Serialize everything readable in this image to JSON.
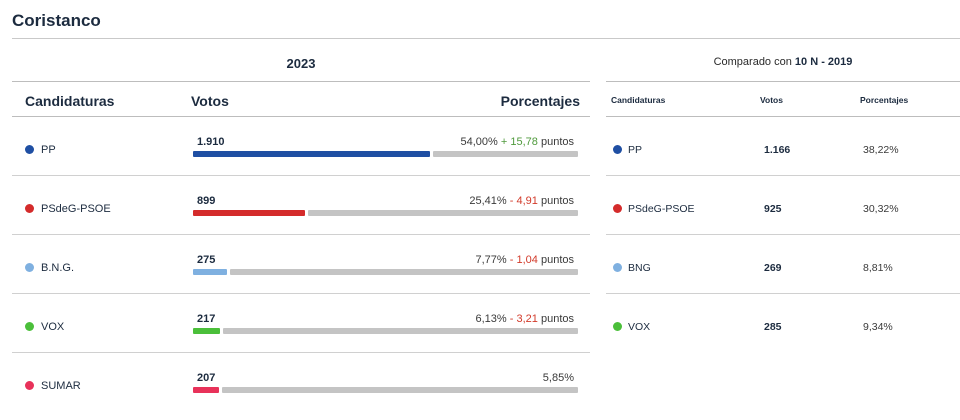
{
  "page": {
    "title": "Coristanco"
  },
  "main": {
    "year": "2023",
    "headers": {
      "party": "Candidaturas",
      "votes": "Votos",
      "percent": "Porcentajes"
    },
    "rows": [
      {
        "party": "PP",
        "color": "#1f4fa3",
        "votes": "1.910",
        "percent": "54,00%",
        "delta": "+ 15,78",
        "delta_sign": "pos",
        "unit": "puntos",
        "share": 54.0
      },
      {
        "party": "PSdeG-PSOE",
        "color": "#d42b2b",
        "votes": "899",
        "percent": "25,41%",
        "delta": "- 4,91",
        "delta_sign": "neg",
        "unit": "puntos",
        "share": 25.41
      },
      {
        "party": "B.N.G.",
        "color": "#7fb0e0",
        "votes": "275",
        "percent": "7,77%",
        "delta": "- 1,04",
        "delta_sign": "neg",
        "unit": "puntos",
        "share": 7.77
      },
      {
        "party": "VOX",
        "color": "#4bbf3a",
        "votes": "217",
        "percent": "6,13%",
        "delta": "- 3,21",
        "delta_sign": "neg",
        "unit": "puntos",
        "share": 6.13
      },
      {
        "party": "SUMAR",
        "color": "#e8325a",
        "votes": "207",
        "percent": "5,85%",
        "delta": "",
        "delta_sign": "",
        "unit": "",
        "share": 5.85
      }
    ]
  },
  "comparison": {
    "label": "Comparado con",
    "election": "10 N - 2019",
    "headers": {
      "party": "Candidaturas",
      "votes": "Votos",
      "percent": "Porcentajes"
    },
    "rows": [
      {
        "party": "PP",
        "color": "#1f4fa3",
        "votes": "1.166",
        "percent": "38,22%"
      },
      {
        "party": "PSdeG-PSOE",
        "color": "#d42b2b",
        "votes": "925",
        "percent": "30,32%"
      },
      {
        "party": "BNG",
        "color": "#7fb0e0",
        "votes": "269",
        "percent": "8,81%"
      },
      {
        "party": "VOX",
        "color": "#4bbf3a",
        "votes": "285",
        "percent": "9,34%"
      }
    ]
  }
}
